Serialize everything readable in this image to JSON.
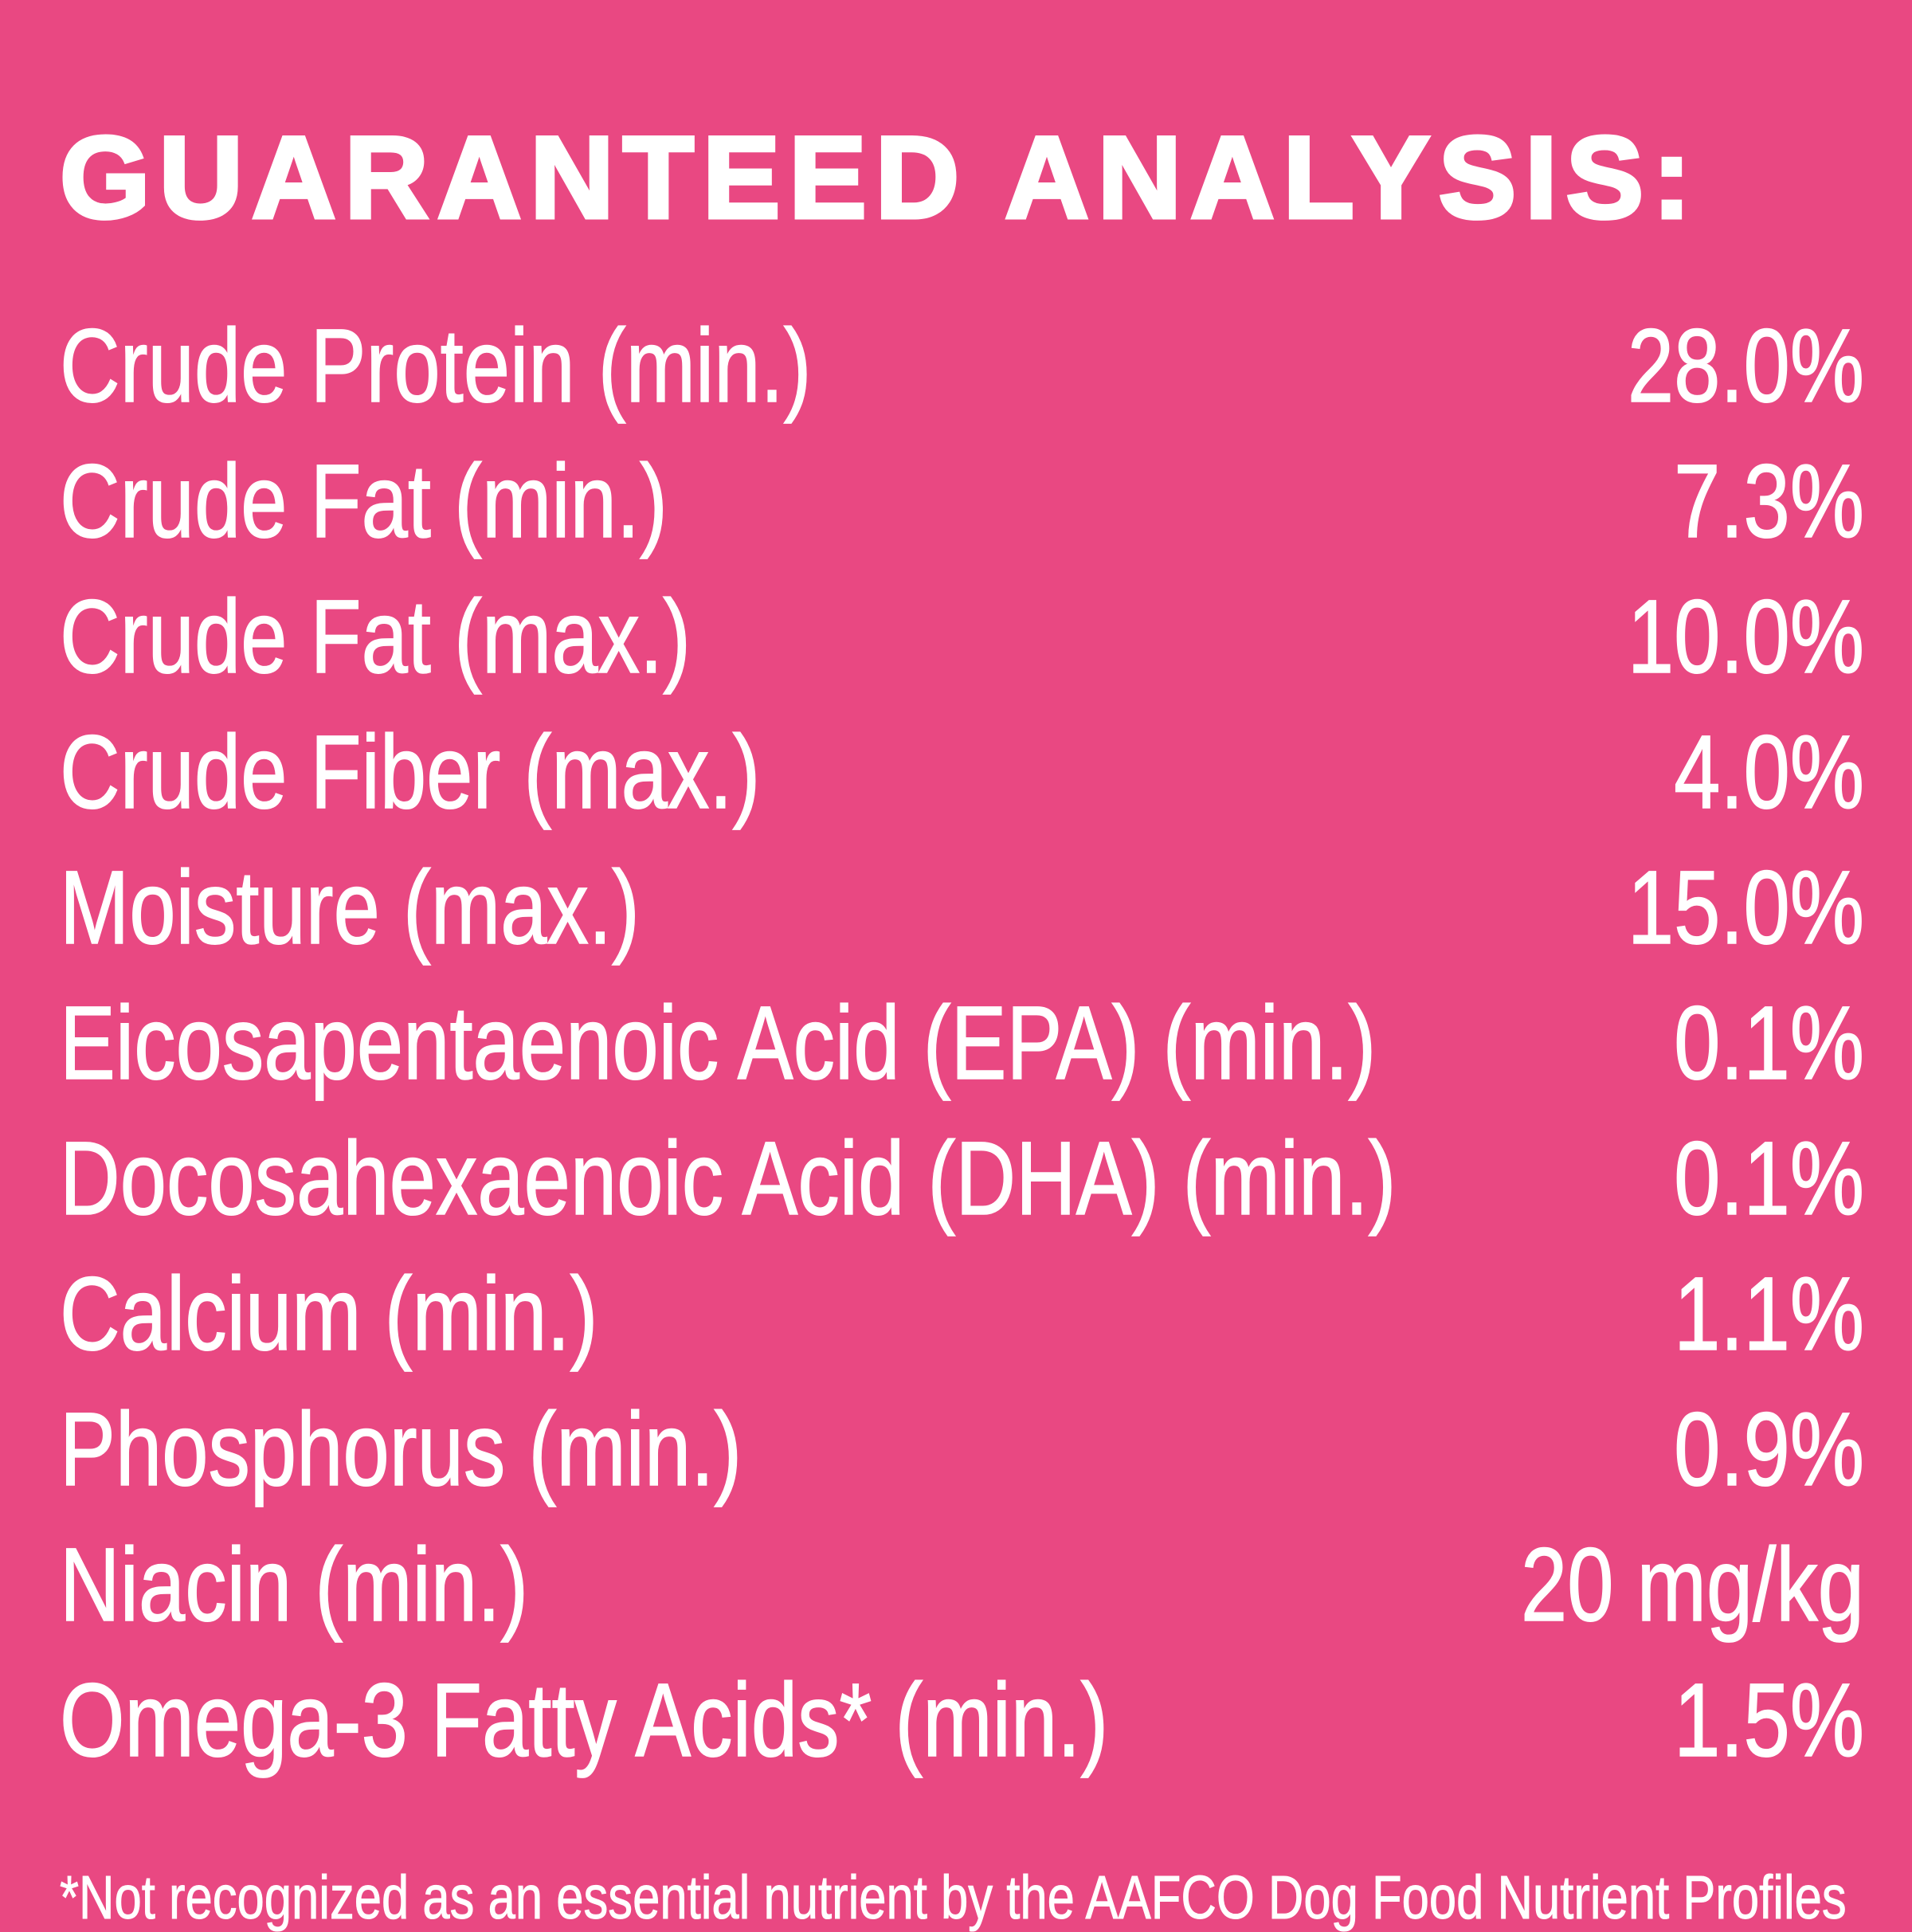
{
  "colors": {
    "background": "#E94882",
    "text": "#FFFFFF"
  },
  "title": "GUARANTEED ANALYSIS:",
  "rows": [
    {
      "label": "Crude Protein (min.)",
      "value": "28.0%"
    },
    {
      "label": "Crude Fat (min.)",
      "value": "7.3%"
    },
    {
      "label": "Crude Fat (max.)",
      "value": "10.0%"
    },
    {
      "label": "Crude Fiber (max.)",
      "value": "4.0%"
    },
    {
      "label": "Moisture (max.)",
      "value": "15.0%"
    },
    {
      "label": "Eicosapentaenoic Acid (EPA) (min.)",
      "value": "0.1%"
    },
    {
      "label": "Docosahexaenoic Acid (DHA) (min.)",
      "value": "0.1%"
    },
    {
      "label": "Calcium (min.)",
      "value": "1.1%"
    },
    {
      "label": "Phosphorus (min.)",
      "value": "0.9%"
    },
    {
      "label": "Niacin (min.)",
      "value": "20 mg/kg"
    },
    {
      "label": "Omega-3 Fatty Acids* (min.)",
      "value": "1.5%"
    }
  ],
  "footnote": "*Not recognized as an essential nutrient by the AAFCO Dog Food Nutrient Profiles"
}
